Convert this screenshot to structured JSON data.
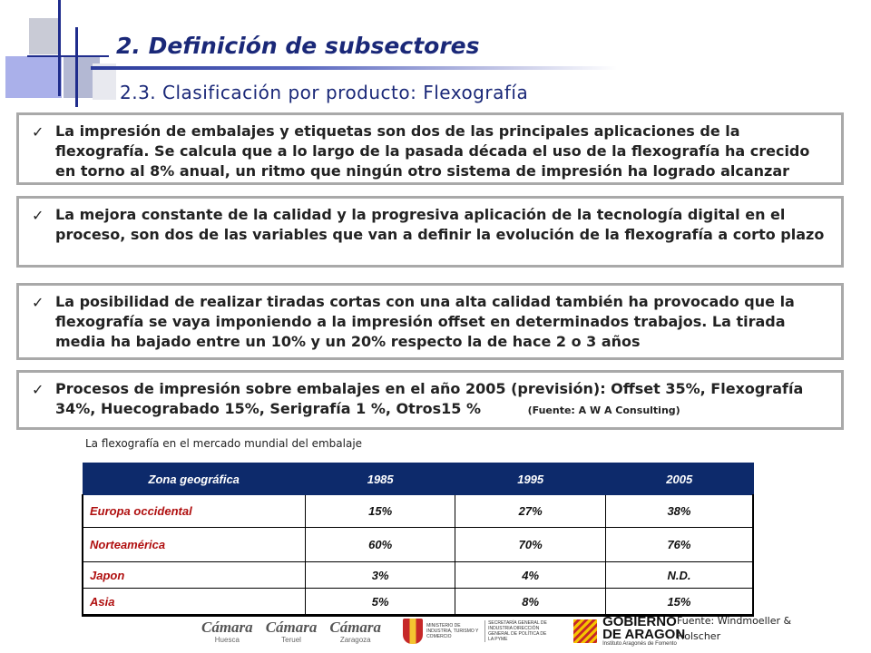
{
  "header": {
    "title": "2. Definición de subsectores",
    "subtitle": "2.3. Clasificación por producto: Flexografía"
  },
  "bullets": [
    {
      "text": "La impresión de embalajes y etiquetas son dos de las principales aplicaciones de la flexografía. Se calcula que a lo largo de la pasada década el uso de la flexografía ha crecido en torno al 8% anual, un ritmo que ningún otro sistema de impresión ha logrado alcanzar"
    },
    {
      "text": "La mejora constante de la calidad y la progresiva aplicación de la tecnología digital en el proceso, son dos de las variables que van a definir la evolución de la flexografía a corto plazo"
    },
    {
      "text": "La posibilidad de realizar tiradas cortas con una alta calidad también ha provocado que la flexografía se vaya imponiendo a la impresión offset en determinados trabajos. La tirada media ha bajado entre un 10% y un 20% respecto la de hace 2 o 3 años"
    },
    {
      "text": "Procesos de impresión sobre embalajes en el año 2005 (previsión): Offset 35%, Flexografía 34%, Huecograbado 15%, Serigrafía 1 %, Otros15 %",
      "source": "(Fuente: A W A Consulting)"
    }
  ],
  "check_symbol": "✓",
  "table": {
    "caption": "La flexografía en el mercado mundial del embalaje",
    "headers": [
      "Zona geográfica",
      "1985",
      "1995",
      "2005"
    ],
    "rows": [
      [
        "Europa occidental",
        "15%",
        "27%",
        "38%"
      ],
      [
        "Norteamérica",
        "60%",
        "70%",
        "76%"
      ],
      [
        "Japon",
        "3%",
        "4%",
        "N.D."
      ],
      [
        "Asia",
        "5%",
        "8%",
        "15%"
      ]
    ]
  },
  "footer": {
    "source_line1": "Fuente: Windmoeller &",
    "source_line2": "Holscher",
    "logos": {
      "camara_name": "Cámara",
      "camara_cities": [
        "Huesca",
        "Teruel",
        "Zaragoza"
      ],
      "ministerio_line1": "MINISTERIO DE INDUSTRIA, TURISMO Y COMERCIO",
      "ministerio_line2": "SECRETARÍA GENERAL DE INDUSTRIA DIRECCIÓN GENERAL DE POLÍTICA DE LA PYME",
      "aragon_line1": "GOBIERNO",
      "aragon_line2": "DE ARAGON",
      "aragon_sub": "Instituto Aragonés de Fomento"
    }
  }
}
